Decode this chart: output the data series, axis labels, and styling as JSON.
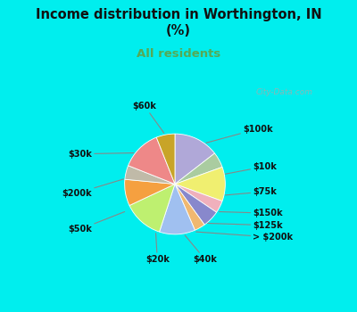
{
  "title": "Income distribution in Worthington, IN\n(%)",
  "subtitle": "All residents",
  "title_color": "#111111",
  "subtitle_color": "#55aa55",
  "background_cyan": "#00EEEE",
  "background_chart_color": "#d8efe0",
  "labels": [
    "$100k",
    "$10k",
    "$75k",
    "$150k",
    "$125k",
    "> $200k",
    "$40k",
    "$20k",
    "$50k",
    "$200k",
    "$30k",
    "$60k"
  ],
  "values": [
    14.5,
    5.0,
    11.0,
    4.0,
    5.5,
    3.5,
    11.5,
    13.0,
    8.5,
    4.5,
    13.0,
    6.0
  ],
  "colors": [
    "#b0a8d8",
    "#aacca0",
    "#f0ef70",
    "#f0b0bc",
    "#8888cc",
    "#f0b870",
    "#a0c0f0",
    "#bef070",
    "#f5a040",
    "#c0baa8",
    "#ee8888",
    "#c8a428"
  ],
  "figsize": [
    4.0,
    3.5
  ],
  "dpi": 100,
  "watermark": "City-Data.com"
}
